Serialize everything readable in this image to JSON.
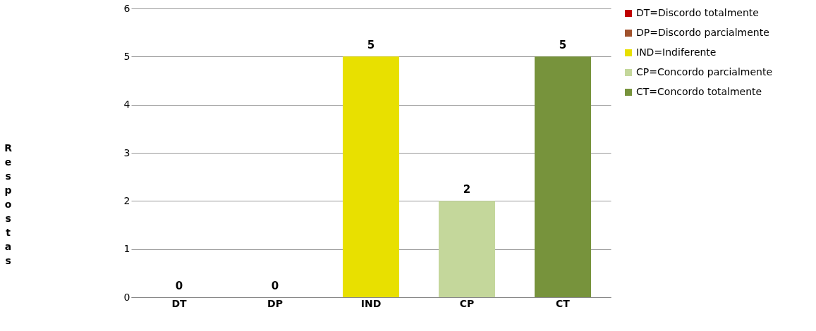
{
  "chart_data": {
    "type": "bar",
    "ylabel": "Respostas",
    "categories": [
      "DT",
      "DP",
      "IND",
      "CP",
      "CT"
    ],
    "series": [
      {
        "name": "DT=Discordo totalmente",
        "color": "#c00000",
        "values": [
          0,
          null,
          null,
          null,
          null
        ]
      },
      {
        "name": "DP=Discordo parcialmente",
        "color": "#a0522d",
        "values": [
          null,
          0,
          null,
          null,
          null
        ]
      },
      {
        "name": "IND=Indiferente",
        "color": "#e8e000",
        "values": [
          null,
          null,
          5,
          null,
          null
        ]
      },
      {
        "name": "CP=Concordo parcialmente",
        "color": "#c4d79b",
        "values": [
          null,
          null,
          null,
          2,
          null
        ]
      },
      {
        "name": "CT=Concordo totalmente",
        "color": "#77933c",
        "values": [
          null,
          null,
          null,
          null,
          5
        ]
      }
    ],
    "ylim": [
      0,
      6
    ],
    "yticks": [
      0,
      1,
      2,
      3,
      4,
      5,
      6
    ],
    "grid": "y",
    "legend": "right",
    "data_labels": true
  }
}
